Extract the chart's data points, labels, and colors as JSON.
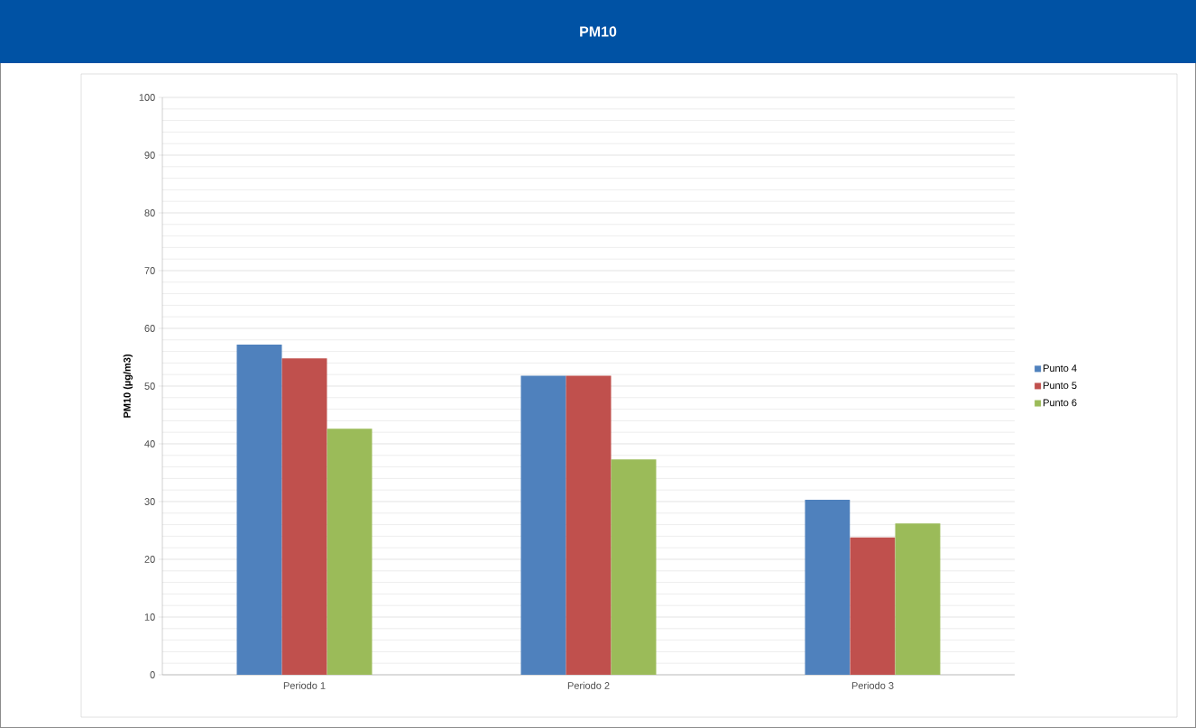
{
  "chart_data": {
    "type": "bar",
    "title": "PM10",
    "ylabel": "PM10 (µg/m3)",
    "categories": [
      "Periodo 1",
      "Periodo 2",
      "Periodo 3"
    ],
    "series": [
      {
        "name": "Punto 4",
        "color": "#4f81bd",
        "values": [
          57.2,
          51.8,
          30.3
        ]
      },
      {
        "name": "Punto 5",
        "color": "#c0504d",
        "values": [
          54.8,
          51.8,
          23.8
        ]
      },
      {
        "name": "Punto 6",
        "color": "#9bbb59",
        "values": [
          42.6,
          37.3,
          26.2
        ]
      }
    ],
    "ylim": [
      0,
      100
    ],
    "yticks": [
      0,
      10,
      20,
      30,
      40,
      50,
      60,
      70,
      80,
      90,
      100
    ],
    "grid": "y",
    "legend": "right"
  }
}
